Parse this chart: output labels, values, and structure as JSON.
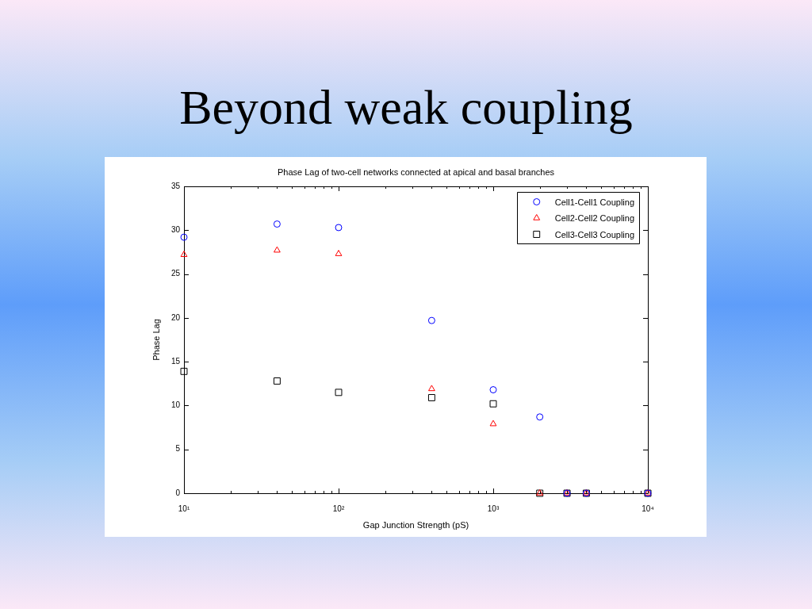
{
  "chart_data": {
    "type": "scatter",
    "title": "Beyond weak coupling",
    "subtitle": "Phase Lag of two-cell networks connected at apical and basal branches",
    "xlabel": "Gap Junction Strength (pS)",
    "ylabel": "Phase Lag",
    "x": [
      10,
      40,
      100,
      400,
      1000,
      2000,
      3000,
      4000,
      10000
    ],
    "series": [
      {
        "name": "Cell1-Cell1 Coupling",
        "color": "#0000ff",
        "marker": "circle",
        "values": [
          29.2,
          30.7,
          30.3,
          19.7,
          11.8,
          8.7,
          0,
          0,
          0
        ]
      },
      {
        "name": "Cell2-Cell2 Coupling",
        "color": "#ff0000",
        "marker": "triangle",
        "values": [
          27.2,
          27.7,
          27.3,
          11.9,
          7.9,
          0,
          0,
          0,
          0
        ]
      },
      {
        "name": "Cell3-Cell3 Coupling",
        "color": "#000000",
        "marker": "square",
        "values": [
          13.9,
          12.8,
          11.5,
          10.9,
          10.2,
          0,
          0,
          0,
          0
        ]
      }
    ],
    "xlim": [
      10,
      10000
    ],
    "ylim": [
      0,
      35
    ],
    "xticks": [
      {
        "value": 10,
        "label": "10¹"
      },
      {
        "value": 20,
        "label": null
      },
      {
        "value": 30,
        "label": null
      },
      {
        "value": 40,
        "label": null
      },
      {
        "value": 50,
        "label": null
      },
      {
        "value": 60,
        "label": null
      },
      {
        "value": 70,
        "label": null
      },
      {
        "value": 80,
        "label": null
      },
      {
        "value": 90,
        "label": null
      },
      {
        "value": 100,
        "label": "10²"
      },
      {
        "value": 200,
        "label": null
      },
      {
        "value": 300,
        "label": null
      },
      {
        "value": 400,
        "label": null
      },
      {
        "value": 500,
        "label": null
      },
      {
        "value": 600,
        "label": null
      },
      {
        "value": 700,
        "label": null
      },
      {
        "value": 800,
        "label": null
      },
      {
        "value": 900,
        "label": null
      },
      {
        "value": 1000,
        "label": "10³"
      },
      {
        "value": 2000,
        "label": null
      },
      {
        "value": 3000,
        "label": null
      },
      {
        "value": 4000,
        "label": null
      },
      {
        "value": 5000,
        "label": null
      },
      {
        "value": 6000,
        "label": null
      },
      {
        "value": 7000,
        "label": null
      },
      {
        "value": 8000,
        "label": null
      },
      {
        "value": 9000,
        "label": null
      },
      {
        "value": 10000,
        "label": "10⁴"
      }
    ],
    "yticks": [
      0,
      5,
      10,
      15,
      20,
      25,
      30,
      35
    ],
    "log": "x",
    "legend": "top right"
  }
}
